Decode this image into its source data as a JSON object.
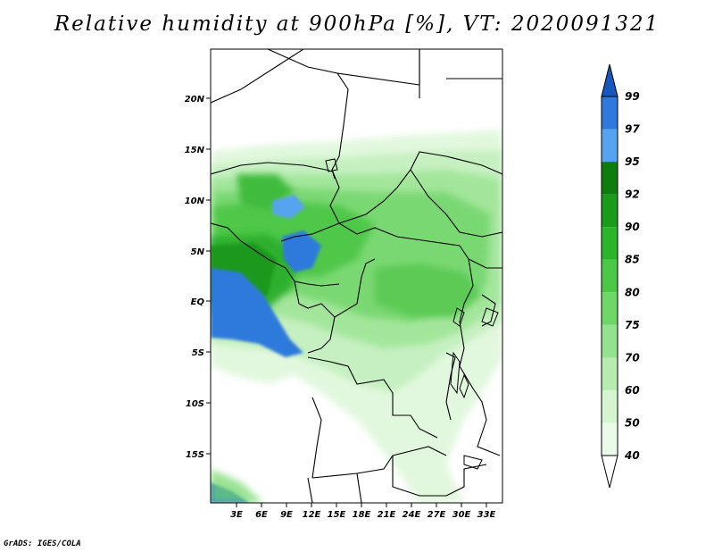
{
  "title": "Relative humidity at 900hPa [%], VT: 2020091321",
  "credit": "GrADS: IGES/COLA",
  "map": {
    "lat_labels": [
      "20N",
      "15N",
      "10N",
      "5N",
      "EQ",
      "5S",
      "10S",
      "15S"
    ],
    "lon_labels": [
      "3E",
      "6E",
      "9E",
      "12E",
      "15E",
      "18E",
      "21E",
      "24E",
      "27E",
      "30E",
      "33E"
    ]
  },
  "colorbar": {
    "labels": [
      "40",
      "50",
      "60",
      "70",
      "75",
      "80",
      "85",
      "90",
      "92",
      "95",
      "97",
      "99"
    ],
    "colors": [
      "#ffffff",
      "#ebfbe9",
      "#d5f5d1",
      "#b6ecb0",
      "#94e28d",
      "#6fd768",
      "#4bc946",
      "#2bb52a",
      "#1a9b1a",
      "#0d7d0d",
      "#56a3f0",
      "#2f79dc",
      "#1557c0"
    ]
  }
}
